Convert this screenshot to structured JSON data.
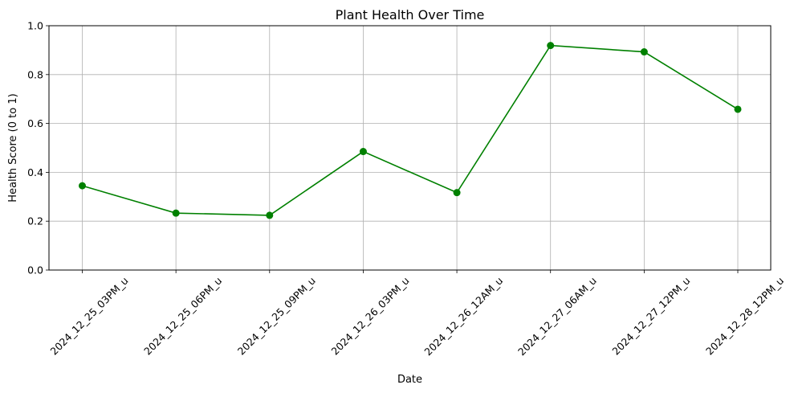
{
  "chart_data": {
    "type": "line",
    "title": "Plant Health Over Time",
    "xlabel": "Date",
    "ylabel": "Health Score (0 to 1)",
    "categories": [
      "2024_12_25_03PM_u",
      "2024_12_25_06PM_u",
      "2024_12_25_09PM_u",
      "2024_12_26_03PM_u",
      "2024_12_26_12AM_u",
      "2024_12_27_06AM_u",
      "2024_12_27_12PM_u",
      "2024_12_28_12PM_u"
    ],
    "series": [
      {
        "values": [
          0.345,
          0.233,
          0.224,
          0.485,
          0.317,
          0.919,
          0.893,
          0.658
        ],
        "color": "#008000",
        "marker": "circle"
      }
    ],
    "ylim": [
      0,
      1
    ],
    "yticks": [
      "0.0",
      "0.2",
      "0.4",
      "0.6",
      "0.8",
      "1.0"
    ],
    "grid": true,
    "legend": "none"
  }
}
